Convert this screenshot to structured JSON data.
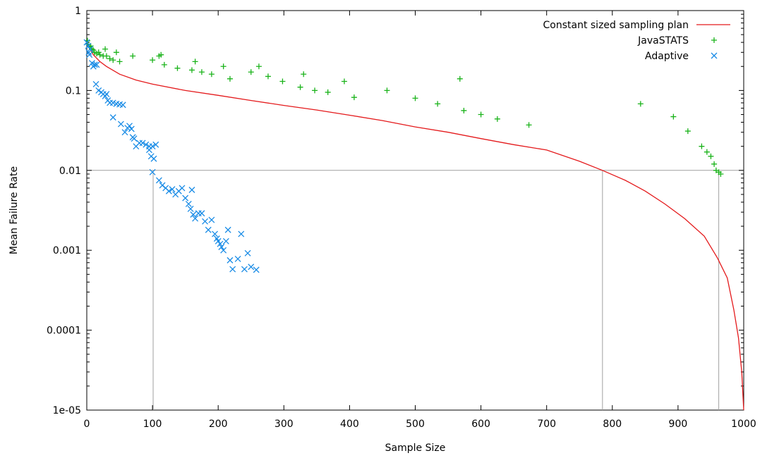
{
  "chart_data": {
    "type": "scatter",
    "xlabel": "Sample Size",
    "ylabel": "Mean Failure Rate",
    "xlim": [
      0,
      1000
    ],
    "ylim": [
      1e-05,
      1
    ],
    "yscale": "log",
    "grid": false,
    "legend_position": "top-right",
    "x_ticks": [
      0,
      100,
      200,
      300,
      400,
      500,
      600,
      700,
      800,
      900,
      1000
    ],
    "y_ticks": [
      {
        "value": 1,
        "label": "1"
      },
      {
        "value": 0.1,
        "label": "0.1"
      },
      {
        "value": 0.01,
        "label": "0.01"
      },
      {
        "value": 0.001,
        "label": "0.001"
      },
      {
        "value": 0.0001,
        "label": "0.0001"
      },
      {
        "value": 1e-05,
        "label": "1e-05"
      }
    ],
    "reference_lines": [
      {
        "type": "horizontal",
        "y": 0.01
      },
      {
        "type": "vertical",
        "x": 101,
        "y_top": 0.01
      },
      {
        "type": "vertical",
        "x": 785,
        "y_top": 0.01
      },
      {
        "type": "vertical",
        "x": 962,
        "y_top": 0.01
      }
    ],
    "series": [
      {
        "name": "Constant sized sampling plan",
        "kind": "line",
        "color": "#e41a1c",
        "points": [
          [
            0,
            0.4
          ],
          [
            5,
            0.33
          ],
          [
            10,
            0.28
          ],
          [
            20,
            0.23
          ],
          [
            30,
            0.2
          ],
          [
            50,
            0.16
          ],
          [
            75,
            0.135
          ],
          [
            100,
            0.12
          ],
          [
            150,
            0.1
          ],
          [
            200,
            0.087
          ],
          [
            250,
            0.075
          ],
          [
            300,
            0.065
          ],
          [
            350,
            0.057
          ],
          [
            400,
            0.049
          ],
          [
            450,
            0.042
          ],
          [
            500,
            0.035
          ],
          [
            550,
            0.03
          ],
          [
            600,
            0.025
          ],
          [
            650,
            0.021
          ],
          [
            700,
            0.018
          ],
          [
            750,
            0.013
          ],
          [
            785,
            0.01
          ],
          [
            820,
            0.0075
          ],
          [
            850,
            0.0055
          ],
          [
            880,
            0.0038
          ],
          [
            910,
            0.0025
          ],
          [
            940,
            0.0015
          ],
          [
            960,
            0.0008
          ],
          [
            975,
            0.00045
          ],
          [
            985,
            0.00018
          ],
          [
            992,
            8e-05
          ],
          [
            997,
            3e-05
          ],
          [
            1000,
            1e-05
          ]
        ]
      },
      {
        "name": "JavaSTATS",
        "kind": "points",
        "marker": "plus",
        "color": "#1ab31a",
        "points": [
          [
            1,
            0.42
          ],
          [
            2,
            0.38
          ],
          [
            4,
            0.35
          ],
          [
            6,
            0.36
          ],
          [
            8,
            0.33
          ],
          [
            10,
            0.32
          ],
          [
            12,
            0.3
          ],
          [
            15,
            0.29
          ],
          [
            18,
            0.3
          ],
          [
            20,
            0.28
          ],
          [
            25,
            0.27
          ],
          [
            28,
            0.33
          ],
          [
            30,
            0.27
          ],
          [
            35,
            0.25
          ],
          [
            40,
            0.24
          ],
          [
            45,
            0.3
          ],
          [
            50,
            0.23
          ],
          [
            70,
            0.27
          ],
          [
            100,
            0.24
          ],
          [
            110,
            0.27
          ],
          [
            113,
            0.28
          ],
          [
            118,
            0.21
          ],
          [
            138,
            0.19
          ],
          [
            160,
            0.18
          ],
          [
            165,
            0.23
          ],
          [
            175,
            0.17
          ],
          [
            190,
            0.16
          ],
          [
            208,
            0.2
          ],
          [
            218,
            0.14
          ],
          [
            250,
            0.17
          ],
          [
            262,
            0.2
          ],
          [
            276,
            0.15
          ],
          [
            298,
            0.13
          ],
          [
            325,
            0.11
          ],
          [
            330,
            0.16
          ],
          [
            347,
            0.1
          ],
          [
            367,
            0.095
          ],
          [
            392,
            0.13
          ],
          [
            407,
            0.082
          ],
          [
            457,
            0.1
          ],
          [
            500,
            0.08
          ],
          [
            534,
            0.068
          ],
          [
            568,
            0.14
          ],
          [
            574,
            0.056
          ],
          [
            600,
            0.05
          ],
          [
            625,
            0.044
          ],
          [
            673,
            0.037
          ],
          [
            843,
            0.068
          ],
          [
            893,
            0.047
          ],
          [
            915,
            0.031
          ],
          [
            936,
            0.02
          ],
          [
            944,
            0.017
          ],
          [
            950,
            0.015
          ],
          [
            955,
            0.012
          ],
          [
            958,
            0.01
          ],
          [
            962,
            0.0095
          ],
          [
            965,
            0.009
          ]
        ]
      },
      {
        "name": "Adaptive",
        "kind": "points",
        "marker": "cross",
        "color": "#1a8ce6",
        "points": [
          [
            0,
            0.4
          ],
          [
            2,
            0.36
          ],
          [
            3,
            0.3
          ],
          [
            4,
            0.28
          ],
          [
            5,
            0.33
          ],
          [
            8,
            0.22
          ],
          [
            10,
            0.2
          ],
          [
            12,
            0.21
          ],
          [
            15,
            0.21
          ],
          [
            14,
            0.12
          ],
          [
            18,
            0.1
          ],
          [
            22,
            0.095
          ],
          [
            25,
            0.09
          ],
          [
            28,
            0.085
          ],
          [
            30,
            0.09
          ],
          [
            32,
            0.075
          ],
          [
            35,
            0.07
          ],
          [
            40,
            0.07
          ],
          [
            45,
            0.068
          ],
          [
            50,
            0.067
          ],
          [
            55,
            0.066
          ],
          [
            40,
            0.046
          ],
          [
            52,
            0.038
          ],
          [
            58,
            0.03
          ],
          [
            62,
            0.034
          ],
          [
            65,
            0.036
          ],
          [
            68,
            0.033
          ],
          [
            70,
            0.026
          ],
          [
            72,
            0.025
          ],
          [
            75,
            0.02
          ],
          [
            80,
            0.022
          ],
          [
            85,
            0.022
          ],
          [
            90,
            0.021
          ],
          [
            95,
            0.02
          ],
          [
            100,
            0.02
          ],
          [
            105,
            0.021
          ],
          [
            95,
            0.018
          ],
          [
            98,
            0.015
          ],
          [
            102,
            0.014
          ],
          [
            100,
            0.0095
          ],
          [
            110,
            0.0075
          ],
          [
            115,
            0.0065
          ],
          [
            120,
            0.006
          ],
          [
            125,
            0.0055
          ],
          [
            130,
            0.0058
          ],
          [
            135,
            0.005
          ],
          [
            140,
            0.0055
          ],
          [
            145,
            0.006
          ],
          [
            150,
            0.0045
          ],
          [
            155,
            0.0038
          ],
          [
            160,
            0.0057
          ],
          [
            158,
            0.0033
          ],
          [
            162,
            0.0028
          ],
          [
            165,
            0.0025
          ],
          [
            170,
            0.0029
          ],
          [
            175,
            0.0029
          ],
          [
            180,
            0.0023
          ],
          [
            185,
            0.0018
          ],
          [
            190,
            0.0024
          ],
          [
            195,
            0.0016
          ],
          [
            198,
            0.0014
          ],
          [
            200,
            0.0013
          ],
          [
            203,
            0.0012
          ],
          [
            205,
            0.0011
          ],
          [
            208,
            0.001
          ],
          [
            212,
            0.0013
          ],
          [
            215,
            0.0018
          ],
          [
            218,
            0.00075
          ],
          [
            222,
            0.00058
          ],
          [
            230,
            0.00078
          ],
          [
            235,
            0.0016
          ],
          [
            240,
            0.00058
          ],
          [
            245,
            0.00092
          ],
          [
            250,
            0.00062
          ],
          [
            258,
            0.00057
          ]
        ]
      }
    ]
  }
}
